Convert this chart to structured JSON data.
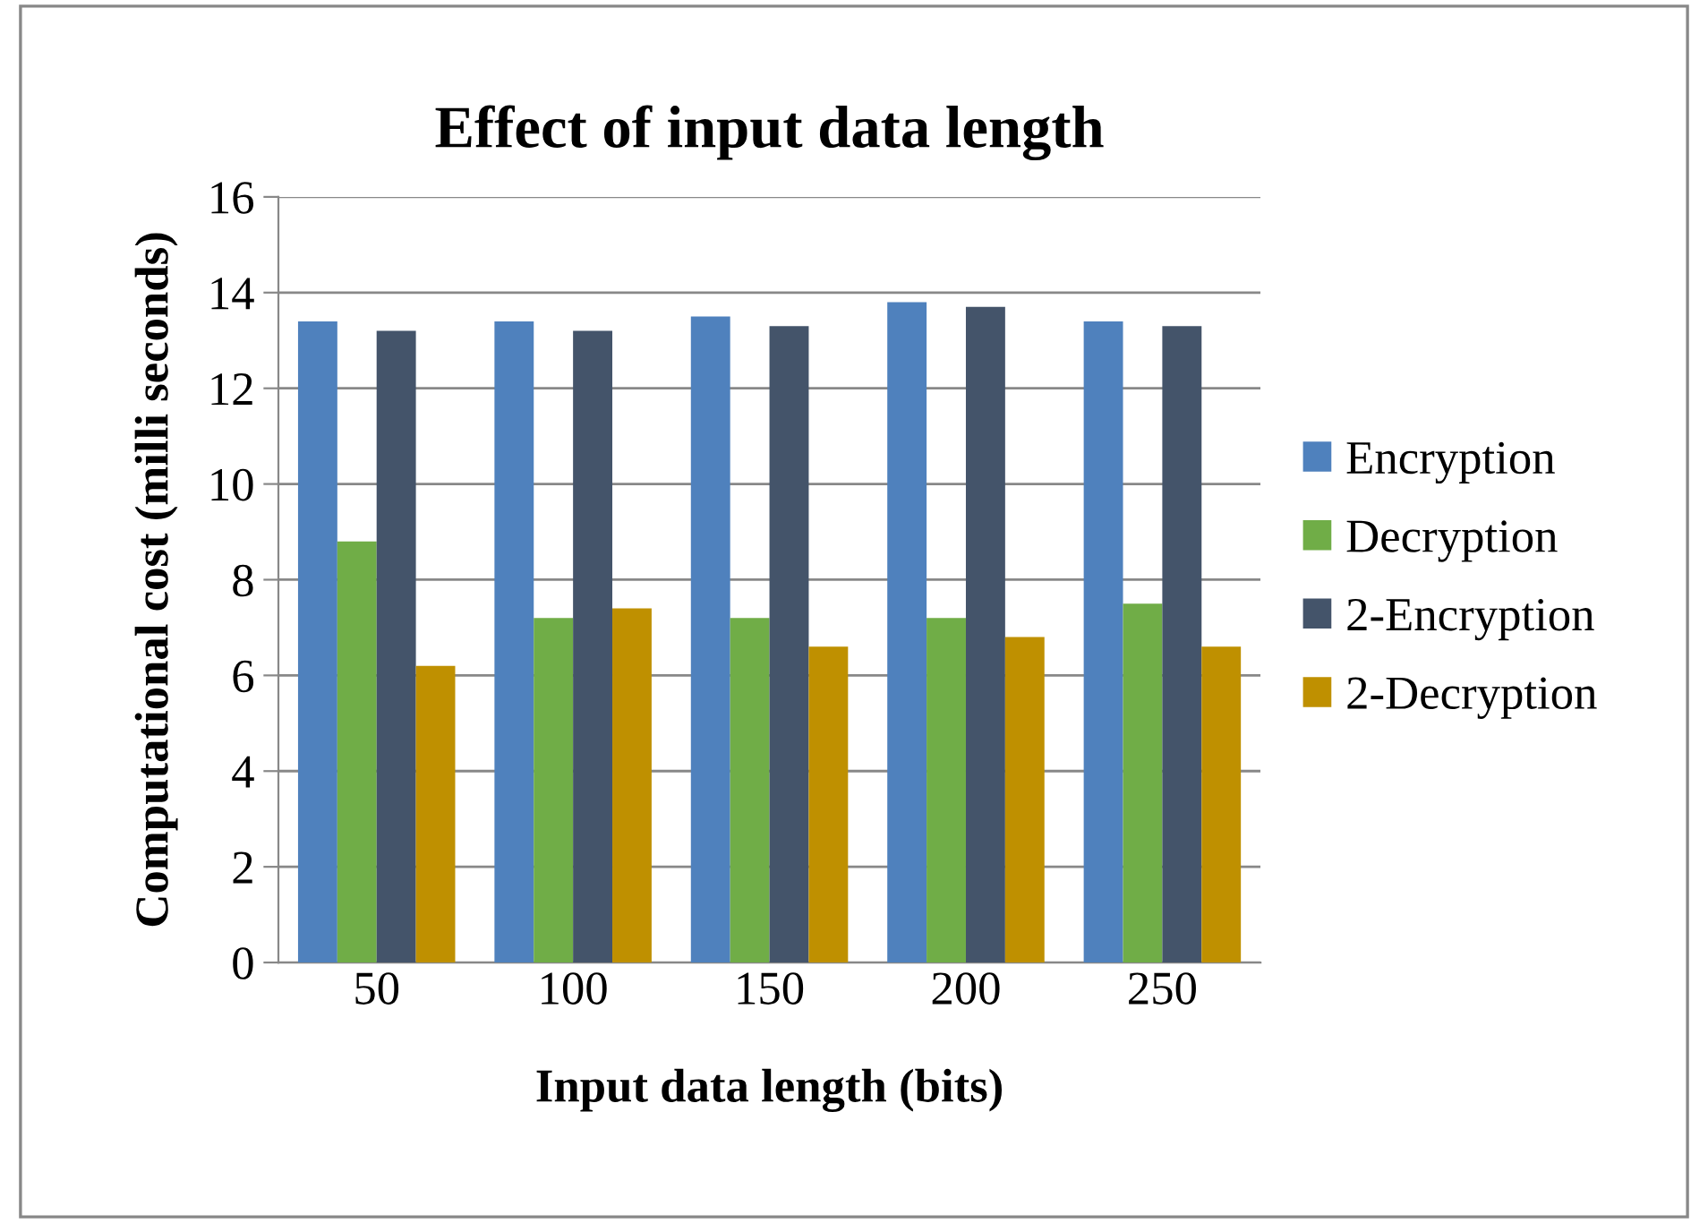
{
  "chart_data": {
    "type": "bar",
    "title": "Effect of input data length",
    "xlabel": "Input data length (bits)",
    "ylabel": "Computational cost (milli seconds)",
    "categories": [
      "50",
      "100",
      "150",
      "200",
      "250"
    ],
    "series": [
      {
        "name": "Encryption",
        "color": "#4f81bd",
        "values": [
          13.4,
          13.4,
          13.5,
          13.8,
          13.4
        ]
      },
      {
        "name": "Decryption",
        "color": "#70ad47",
        "values": [
          8.8,
          7.2,
          7.2,
          7.2,
          7.5
        ]
      },
      {
        "name": "2-Encryption",
        "color": "#44546a",
        "values": [
          13.2,
          13.2,
          13.3,
          13.7,
          13.3
        ]
      },
      {
        "name": "2-Decryption",
        "color": "#bf9000",
        "values": [
          6.2,
          7.4,
          6.6,
          6.8,
          6.6
        ]
      }
    ],
    "ylim": [
      0,
      16
    ],
    "yticks": [
      0,
      2,
      4,
      6,
      8,
      10,
      12,
      14,
      16
    ],
    "grid": "y",
    "legend": "right"
  }
}
